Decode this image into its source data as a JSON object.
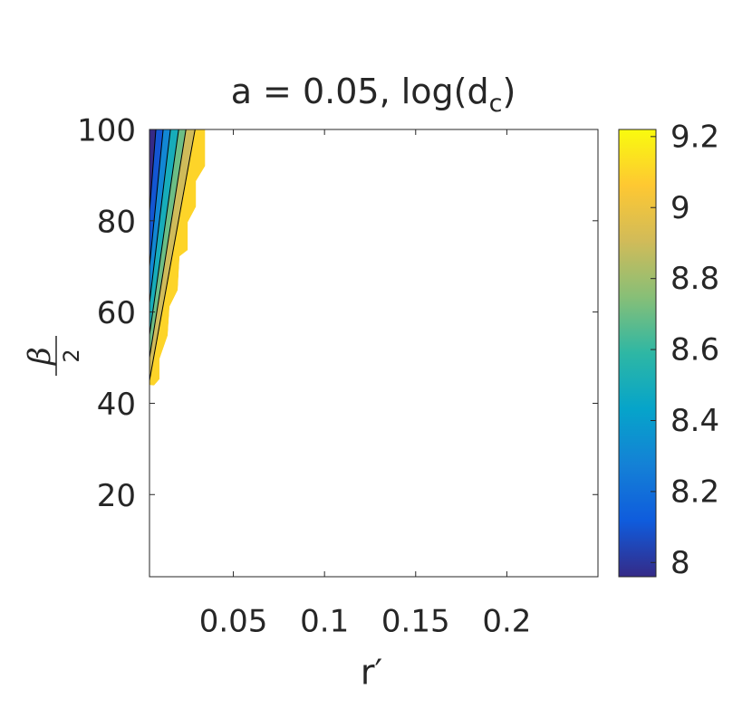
{
  "chart_data": {
    "type": "contourf",
    "title": {
      "text": "a = 0.05, log(d",
      "subscript": "c",
      "suffix": ")"
    },
    "xlabel": "r′",
    "ylabel": {
      "numerator": "β",
      "denominator": "2"
    },
    "xlim": [
      0.004,
      0.25
    ],
    "ylim": [
      2,
      100
    ],
    "xticks": [
      0.05,
      0.1,
      0.15,
      0.2
    ],
    "yticks": [
      20,
      40,
      60,
      80,
      100
    ],
    "clim": [
      7.96,
      9.22
    ],
    "cticks": [
      8,
      8.2,
      8.4,
      8.6,
      8.8,
      9,
      9.2
    ],
    "colormap": [
      "#352a87",
      "#0f5cdd",
      "#1481d6",
      "#06a4ca",
      "#2eb7a4",
      "#87bf77",
      "#d1bb59",
      "#fec832",
      "#f9fb0e"
    ],
    "boundary": {
      "x": [
        0.0065,
        0.0095,
        0.0095,
        0.014,
        0.015,
        0.0195,
        0.0205,
        0.025,
        0.025,
        0.0295,
        0.0295,
        0.0345,
        0.0345,
        0.004,
        0.004
      ],
      "y": [
        43.9,
        45.3,
        49.7,
        54.9,
        61.2,
        64.8,
        72.2,
        73.6,
        79.7,
        83.1,
        88.7,
        92.0,
        100,
        100,
        44
      ]
    },
    "bands": [
      7.9,
      8.1,
      8.3,
      8.5,
      8.7,
      8.9,
      9.1
    ],
    "lines": [
      {
        "level": 8.0,
        "x": [
          0.004,
          0.0075
        ],
        "y": [
          82,
          100
        ]
      },
      {
        "level": 8.2,
        "x": [
          0.004,
          0.0115
        ],
        "y": [
          70,
          100
        ]
      },
      {
        "level": 8.4,
        "x": [
          0.004,
          0.0155
        ],
        "y": [
          62,
          100
        ]
      },
      {
        "level": 8.6,
        "x": [
          0.004,
          0.02
        ],
        "y": [
          55,
          100
        ]
      },
      {
        "level": 8.8,
        "x": [
          0.004,
          0.024
        ],
        "y": [
          50,
          100
        ]
      },
      {
        "level": 9.0,
        "x": [
          0.004,
          0.029
        ],
        "y": [
          45,
          100
        ]
      }
    ]
  }
}
